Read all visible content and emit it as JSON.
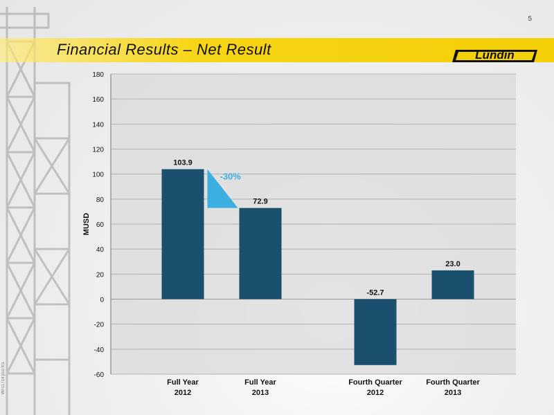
{
  "page": {
    "number": "5",
    "side_code": "WF11714 p10 f01"
  },
  "header": {
    "title": "Financial Results – Net Result",
    "logo_text": "Lundin"
  },
  "colors": {
    "bar": "#1b4f6e",
    "accent": "#3daee0",
    "band": "#f3cf06",
    "plot_bg": "#d9d9d9"
  },
  "chart_data": {
    "type": "bar",
    "title": "",
    "xlabel": "",
    "ylabel": "MUSD",
    "ylim": [
      -60,
      180
    ],
    "yticks": [
      180,
      160,
      140,
      120,
      100,
      80,
      60,
      40,
      20,
      0,
      -20,
      -40,
      -60
    ],
    "grid": true,
    "categories": [
      {
        "line1": "Full Year",
        "line2": "2012"
      },
      {
        "line1": "Full Year",
        "line2": "2013"
      },
      {
        "line1": "Fourth Quarter",
        "line2": "2012"
      },
      {
        "line1": "Fourth Quarter",
        "line2": "2013"
      }
    ],
    "values": [
      103.9,
      72.9,
      -52.7,
      23.0
    ],
    "data_labels": [
      "103.9",
      "72.9",
      "-52.7",
      "23.0"
    ],
    "annotation": {
      "text": "-30%",
      "between": [
        0,
        1
      ]
    }
  }
}
